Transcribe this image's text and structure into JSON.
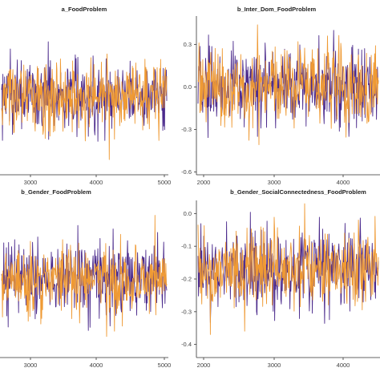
{
  "chart_data": [
    {
      "type": "line",
      "title": "a_FoodProblem",
      "xticks": [
        3000,
        4000,
        5000
      ],
      "yticks": [],
      "xlim": [
        2000,
        5000
      ],
      "ylim": [
        -0.75,
        0.75
      ],
      "center": 0.0,
      "spread": 0.16,
      "series": [
        {
          "color": "#4b2a8c"
        },
        {
          "color": "#ef9a34"
        }
      ]
    },
    {
      "type": "line",
      "title": "b_Inter_Dom_FoodProblem",
      "xticks": [
        2000,
        3000,
        4000
      ],
      "yticks": [
        "0.3",
        "0.0",
        "-0.3",
        "-0.6"
      ],
      "ytick_values": [
        0.3,
        0.0,
        -0.3,
        -0.6
      ],
      "xlim": [
        2000,
        5000
      ],
      "ylim": [
        -0.62,
        0.5
      ],
      "center": 0.0,
      "spread": 0.13,
      "series": [
        {
          "color": "#4b2a8c"
        },
        {
          "color": "#ef9a34"
        }
      ]
    },
    {
      "type": "line",
      "title": "b_Gender_FoodProblem",
      "xticks": [
        3000,
        4000,
        5000
      ],
      "yticks": [],
      "xlim": [
        2000,
        5000
      ],
      "ylim": [
        -0.75,
        0.75
      ],
      "center": 0.0,
      "spread": 0.16,
      "series": [
        {
          "color": "#4b2a8c"
        },
        {
          "color": "#ef9a34"
        }
      ]
    },
    {
      "type": "line",
      "title": "b_Gender_SocialConnectedness_FoodProblem",
      "xticks": [
        2000,
        3000,
        4000
      ],
      "yticks": [
        "0.0",
        "-0.1",
        "-0.2",
        "-0.3",
        "-0.4"
      ],
      "ytick_values": [
        0.0,
        -0.1,
        -0.2,
        -0.3,
        -0.4
      ],
      "xlim": [
        2000,
        5000
      ],
      "ylim": [
        -0.44,
        0.04
      ],
      "center": -0.17,
      "spread": 0.06,
      "series": [
        {
          "color": "#4b2a8c"
        },
        {
          "color": "#ef9a34"
        }
      ]
    }
  ]
}
